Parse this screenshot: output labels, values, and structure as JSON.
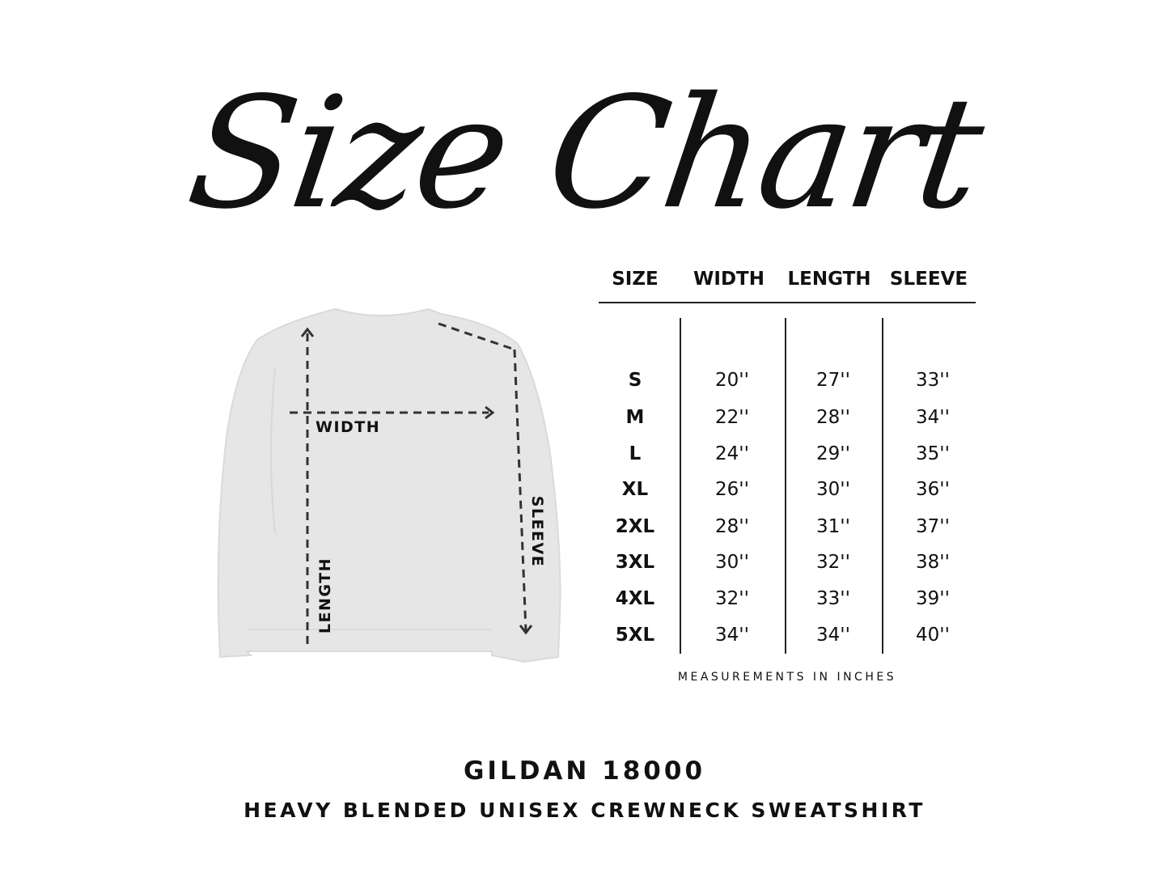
{
  "title": "Size Chart",
  "table": {
    "headers": [
      "SIZE",
      "WIDTH",
      "LENGTH",
      "SLEEVE"
    ],
    "rows": [
      [
        "S",
        "20''",
        "27''",
        "33''"
      ],
      [
        "M",
        "22''",
        "28''",
        "34''"
      ],
      [
        "L",
        "24''",
        "29''",
        "35''"
      ],
      [
        "XL",
        "26''",
        "30''",
        "36''"
      ],
      [
        "2XL",
        "28''",
        "31''",
        "37''"
      ],
      [
        "3XL",
        "30''",
        "32''",
        "38''"
      ],
      [
        "4XL",
        "32''",
        "33''",
        "39''"
      ],
      [
        "5XL",
        "34''",
        "34''",
        "40''"
      ]
    ],
    "note": "MEASUREMENTS IN INCHES"
  },
  "diagram": {
    "width_label": "WIDTH",
    "length_label": "LENGTH",
    "sleeve_label": "SLEEVE",
    "garment_color": "#e6e6e6",
    "arrow_color": "#333333"
  },
  "footer": {
    "brand": "GILDAN 18000",
    "description": "HEAVY BLENDED UNISEX CREWNECK SWEATSHIRT"
  }
}
